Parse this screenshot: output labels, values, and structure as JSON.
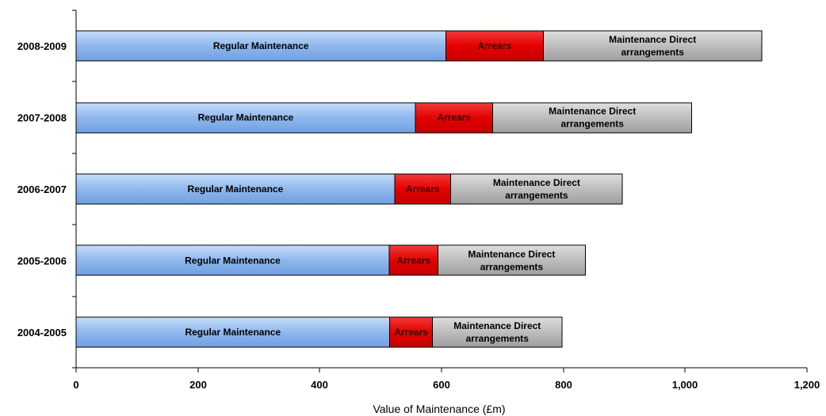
{
  "chart_data": {
    "type": "bar",
    "orientation": "horizontal",
    "stacked": true,
    "categories": [
      "2008-2009",
      "2007-2008",
      "2006-2007",
      "2005-2006",
      "2004-2005"
    ],
    "series": [
      {
        "name": "Regular Maintenance",
        "label_lines": [
          "Regular Maintenance"
        ],
        "color": "#8fb8ee",
        "values": [
          607,
          557,
          523,
          514,
          515
        ]
      },
      {
        "name": "Arrears",
        "label_lines": [
          "Arrears"
        ],
        "color": "#e60000",
        "values": [
          160,
          127,
          92,
          80,
          70
        ]
      },
      {
        "name": "Maintenance Direct arrangements",
        "label_lines": [
          "Maintenance Direct",
          "arrangements"
        ],
        "color": "#bdbdbd",
        "values": [
          359,
          327,
          282,
          242,
          213
        ]
      }
    ],
    "xlabel": "Value of Maintenance (£m)",
    "ylabel": "",
    "xlim": [
      0,
      1200
    ],
    "x_ticks": [
      0,
      200,
      400,
      600,
      800,
      1000,
      1200
    ],
    "x_tick_labels": [
      "0",
      "200",
      "400",
      "600",
      "800",
      "1,000",
      "1,200"
    ],
    "grid": false,
    "legend": "none"
  }
}
